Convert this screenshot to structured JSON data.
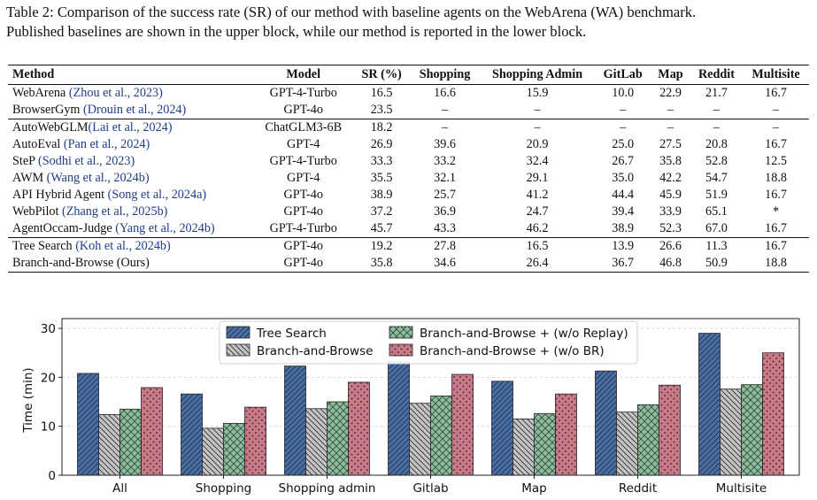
{
  "caption": {
    "line1": "Table 2: Comparison of the success rate (SR) of our method with baseline agents on the WebArena (WA) benchmark.",
    "line2": "Published baselines are shown in the upper block, while our method is reported in the lower block."
  },
  "table": {
    "headers": [
      "Method",
      "Model",
      "SR (%)",
      "Shopping",
      "Shopping Admin",
      "GitLab",
      "Map",
      "Reddit",
      "Multisite"
    ],
    "rows": [
      {
        "name": "WebArena ",
        "cite": "(Zhou et al., 2023)",
        "model": "GPT-4-Turbo",
        "vals": [
          "16.5",
          "16.6",
          "15.9",
          "10.0",
          "22.9",
          "21.7",
          "16.7"
        ]
      },
      {
        "name": "BrowserGym ",
        "cite": "(Drouin et al., 2024)",
        "model": "GPT-4o",
        "vals": [
          "23.5",
          "–",
          "–",
          "–",
          "–",
          "–",
          "–"
        ]
      },
      {
        "name": "AutoWebGLM",
        "cite": "(Lai et al., 2024)",
        "model": "ChatGLM3-6B",
        "vals": [
          "18.2",
          "–",
          "–",
          "–",
          "–",
          "–",
          "–"
        ]
      },
      {
        "name": "AutoEval ",
        "cite": "(Pan et al., 2024)",
        "model": "GPT-4",
        "vals": [
          "26.9",
          "39.6",
          "20.9",
          "25.0",
          "27.5",
          "20.8",
          "16.7"
        ]
      },
      {
        "name": "SteP ",
        "cite": "(Sodhi et al., 2023)",
        "model": "GPT-4-Turbo",
        "vals": [
          "33.3",
          "33.2",
          "32.4",
          "26.7",
          "35.8",
          "52.8",
          "12.5"
        ]
      },
      {
        "name": "AWM ",
        "cite": "(Wang et al., 2024b)",
        "model": "GPT-4",
        "vals": [
          "35.5",
          "32.1",
          "29.1",
          "35.0",
          "42.2",
          "54.7",
          "18.8"
        ]
      },
      {
        "name": "API Hybrid Agent ",
        "cite": "(Song et al., 2024a)",
        "model": "GPT-4o",
        "vals": [
          "38.9",
          "25.7",
          "41.2",
          "44.4",
          "45.9",
          "51.9",
          "16.7"
        ]
      },
      {
        "name": "WebPilot ",
        "cite": "(Zhang et al., 2025b)",
        "model": "GPT-4o",
        "vals": [
          "37.2",
          "36.9",
          "24.7",
          "39.4",
          "33.9",
          "65.1",
          "*"
        ]
      },
      {
        "name": "AgentOccam-Judge ",
        "cite": "(Yang et al., 2024b)",
        "model": "GPT-4-Turbo",
        "vals": [
          "45.7",
          "43.3",
          "46.2",
          "38.9",
          "52.3",
          "67.0",
          "16.7"
        ]
      },
      {
        "name": "Tree Search ",
        "cite": "(Koh et al., 2024b)",
        "model": "GPT-4o",
        "vals": [
          "19.2",
          "27.8",
          "16.5",
          "13.9",
          "26.6",
          "11.3",
          "16.7"
        ]
      },
      {
        "name": "Branch-and-Browse (Ours)",
        "cite": "",
        "model": "GPT-4o",
        "vals": [
          "35.8",
          "34.6",
          "26.4",
          "36.7",
          "46.8",
          "50.9",
          "18.8"
        ]
      }
    ]
  },
  "chart_data": {
    "type": "bar",
    "ylabel": "Time (min)",
    "ylim": [
      0,
      32
    ],
    "yticks": [
      0,
      10,
      20,
      30
    ],
    "grid": true,
    "legend_position": "top-center",
    "categories": [
      "All",
      "Shopping",
      "Shopping admin",
      "Gitlab",
      "Map",
      "Reddit",
      "Multisite"
    ],
    "series": [
      {
        "name": "Tree Search",
        "color": "#4a6fa5",
        "pattern": "diagonal",
        "values": [
          20.8,
          16.6,
          22.3,
          23.2,
          19.2,
          21.3,
          29.0
        ]
      },
      {
        "name": "Branch-and-Browse",
        "color": "#c4c4c4",
        "pattern": "backdiagonal",
        "values": [
          12.4,
          9.6,
          13.6,
          14.7,
          11.5,
          12.9,
          17.6
        ]
      },
      {
        "name": "Branch-and-Browse + (w/o Replay)",
        "color": "#8fbc9f",
        "pattern": "crosshatch",
        "values": [
          13.5,
          10.6,
          15.0,
          16.2,
          12.6,
          14.4,
          18.5
        ]
      },
      {
        "name": "Branch-and-Browse + (w/o BR)",
        "color": "#c97a88",
        "pattern": "dots",
        "values": [
          17.9,
          13.9,
          19.0,
          20.6,
          16.6,
          18.4,
          25.0
        ]
      }
    ]
  }
}
